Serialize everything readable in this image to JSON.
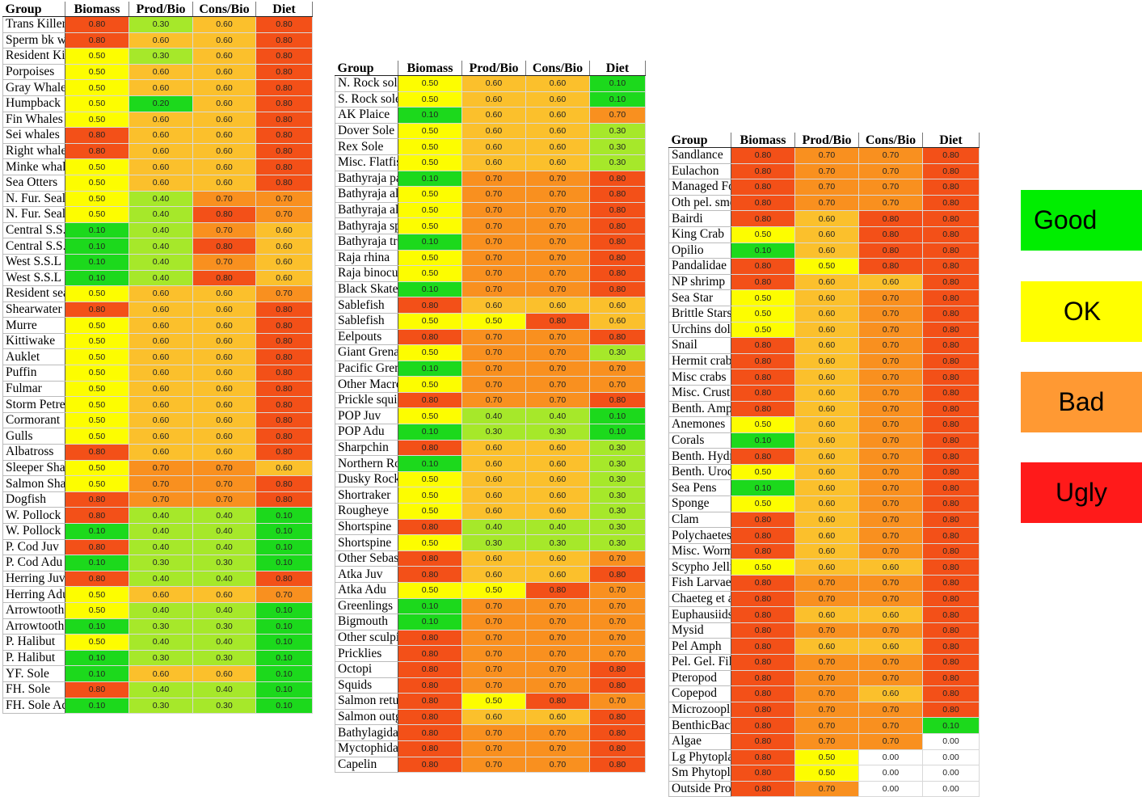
{
  "headers": [
    "Group",
    "Biomass",
    "Prod/Bio",
    "Cons/Bio",
    "Diet"
  ],
  "tables": [
    {
      "rows": [
        [
          "Trans Killer",
          "0.80",
          "0.30",
          "0.60",
          "0.80"
        ],
        [
          "Sperm bk whales",
          "0.80",
          "0.60",
          "0.60",
          "0.80"
        ],
        [
          "Resident Killers",
          "0.50",
          "0.30",
          "0.60",
          "0.80"
        ],
        [
          "Porpoises",
          "0.50",
          "0.60",
          "0.60",
          "0.80"
        ],
        [
          "Gray Whales",
          "0.50",
          "0.60",
          "0.60",
          "0.80"
        ],
        [
          "Humpback",
          "0.50",
          "0.20",
          "0.60",
          "0.80"
        ],
        [
          "Fin Whales",
          "0.50",
          "0.60",
          "0.60",
          "0.80"
        ],
        [
          "Sei whales",
          "0.80",
          "0.60",
          "0.60",
          "0.80"
        ],
        [
          "Right whales",
          "0.80",
          "0.60",
          "0.60",
          "0.80"
        ],
        [
          "Minke whales",
          "0.50",
          "0.60",
          "0.60",
          "0.80"
        ],
        [
          "Sea Otters",
          "0.50",
          "0.60",
          "0.60",
          "0.80"
        ],
        [
          "N. Fur. Seal",
          "0.50",
          "0.40",
          "0.70",
          "0.70"
        ],
        [
          "N. Fur. Seal",
          "0.50",
          "0.40",
          "0.80",
          "0.70"
        ],
        [
          "Central S.S.L",
          "0.10",
          "0.40",
          "0.70",
          "0.60"
        ],
        [
          "Central S.S.L",
          "0.10",
          "0.40",
          "0.80",
          "0.60"
        ],
        [
          "West S.S.L",
          "0.10",
          "0.40",
          "0.70",
          "0.60"
        ],
        [
          "West S.S.L",
          "0.10",
          "0.40",
          "0.80",
          "0.60"
        ],
        [
          "Resident seals",
          "0.50",
          "0.60",
          "0.60",
          "0.70"
        ],
        [
          "Shearwater",
          "0.80",
          "0.60",
          "0.60",
          "0.80"
        ],
        [
          "Murre",
          "0.50",
          "0.60",
          "0.60",
          "0.80"
        ],
        [
          "Kittiwake",
          "0.50",
          "0.60",
          "0.60",
          "0.80"
        ],
        [
          "Auklet",
          "0.50",
          "0.60",
          "0.60",
          "0.80"
        ],
        [
          "Puffin",
          "0.50",
          "0.60",
          "0.60",
          "0.80"
        ],
        [
          "Fulmar",
          "0.50",
          "0.60",
          "0.60",
          "0.80"
        ],
        [
          "Storm Petrel",
          "0.50",
          "0.60",
          "0.60",
          "0.80"
        ],
        [
          "Cormorant",
          "0.50",
          "0.60",
          "0.60",
          "0.80"
        ],
        [
          "Gulls",
          "0.50",
          "0.60",
          "0.60",
          "0.80"
        ],
        [
          "Albatross",
          "0.80",
          "0.60",
          "0.60",
          "0.80"
        ],
        [
          "Sleeper Shark",
          "0.50",
          "0.70",
          "0.70",
          "0.60"
        ],
        [
          "Salmon Shark",
          "0.50",
          "0.70",
          "0.70",
          "0.80"
        ],
        [
          "Dogfish",
          "0.80",
          "0.70",
          "0.70",
          "0.80"
        ],
        [
          "W. Pollock",
          "0.80",
          "0.40",
          "0.40",
          "0.10"
        ],
        [
          "W. Pollock",
          "0.10",
          "0.40",
          "0.40",
          "0.10"
        ],
        [
          "P. Cod  Juv",
          "0.80",
          "0.40",
          "0.40",
          "0.10"
        ],
        [
          "P. Cod  Adu",
          "0.10",
          "0.30",
          "0.30",
          "0.10"
        ],
        [
          "Herring  Juv",
          "0.80",
          "0.40",
          "0.40",
          "0.80"
        ],
        [
          "Herring  Adu",
          "0.50",
          "0.60",
          "0.60",
          "0.70"
        ],
        [
          "Arrowtooth",
          "0.50",
          "0.40",
          "0.40",
          "0.10"
        ],
        [
          "Arrowtooth",
          "0.10",
          "0.30",
          "0.30",
          "0.10"
        ],
        [
          "P. Halibut",
          "0.50",
          "0.40",
          "0.40",
          "0.10"
        ],
        [
          "P. Halibut",
          "0.10",
          "0.30",
          "0.30",
          "0.10"
        ],
        [
          "YF. Sole",
          "0.10",
          "0.60",
          "0.60",
          "0.10"
        ],
        [
          "FH. Sole",
          "0.80",
          "0.40",
          "0.40",
          "0.10"
        ],
        [
          "FH. Sole  Adu",
          "0.10",
          "0.30",
          "0.30",
          "0.10"
        ]
      ]
    },
    {
      "rows": [
        [
          "N. Rock sole",
          "0.50",
          "0.60",
          "0.60",
          "0.10"
        ],
        [
          "S. Rock sole",
          "0.50",
          "0.60",
          "0.60",
          "0.10"
        ],
        [
          "AK Plaice",
          "0.10",
          "0.60",
          "0.60",
          "0.70"
        ],
        [
          "Dover Sole",
          "0.50",
          "0.60",
          "0.60",
          "0.30"
        ],
        [
          "Rex Sole",
          "0.50",
          "0.60",
          "0.60",
          "0.30"
        ],
        [
          "Misc. Flatfish",
          "0.50",
          "0.60",
          "0.60",
          "0.30"
        ],
        [
          "Bathyraja parmifera",
          "0.10",
          "0.70",
          "0.70",
          "0.80"
        ],
        [
          "Bathyraja aleutica",
          "0.50",
          "0.70",
          "0.70",
          "0.80"
        ],
        [
          "Bathyraja aleutica",
          "0.50",
          "0.70",
          "0.70",
          "0.80"
        ],
        [
          "Bathyraja spp",
          "0.50",
          "0.70",
          "0.70",
          "0.80"
        ],
        [
          "Bathyraja trachura",
          "0.10",
          "0.70",
          "0.70",
          "0.80"
        ],
        [
          "Raja rhina",
          "0.50",
          "0.70",
          "0.70",
          "0.80"
        ],
        [
          "Raja binoculata",
          "0.50",
          "0.70",
          "0.70",
          "0.80"
        ],
        [
          "Black Skate",
          "0.10",
          "0.70",
          "0.70",
          "0.80"
        ],
        [
          "Sablefish",
          "0.80",
          "0.60",
          "0.60",
          "0.60"
        ],
        [
          "Sablefish",
          "0.50",
          "0.50",
          "0.80",
          "0.60"
        ],
        [
          "Eelpouts",
          "0.80",
          "0.70",
          "0.70",
          "0.80"
        ],
        [
          "Giant Grenadier",
          "0.50",
          "0.70",
          "0.70",
          "0.30"
        ],
        [
          "Pacific Grenadier",
          "0.10",
          "0.70",
          "0.70",
          "0.70"
        ],
        [
          "Other Macrourids",
          "0.50",
          "0.70",
          "0.70",
          "0.70"
        ],
        [
          "Prickle squish",
          "0.80",
          "0.70",
          "0.70",
          "0.80"
        ],
        [
          "POP  Juv",
          "0.50",
          "0.40",
          "0.40",
          "0.10"
        ],
        [
          "POP  Adu",
          "0.10",
          "0.30",
          "0.30",
          "0.10"
        ],
        [
          "Sharpchin",
          "0.80",
          "0.60",
          "0.60",
          "0.30"
        ],
        [
          "Northern Rockfish",
          "0.10",
          "0.60",
          "0.60",
          "0.30"
        ],
        [
          "Dusky Rockfish",
          "0.50",
          "0.60",
          "0.60",
          "0.30"
        ],
        [
          "Shortraker",
          "0.50",
          "0.60",
          "0.60",
          "0.30"
        ],
        [
          "Rougheye",
          "0.50",
          "0.60",
          "0.60",
          "0.30"
        ],
        [
          "Shortspine",
          "0.80",
          "0.40",
          "0.40",
          "0.30"
        ],
        [
          "Shortspine",
          "0.50",
          "0.30",
          "0.30",
          "0.30"
        ],
        [
          "Other Sebastes",
          "0.80",
          "0.60",
          "0.60",
          "0.70"
        ],
        [
          "Atka  Juv",
          "0.80",
          "0.60",
          "0.60",
          "0.80"
        ],
        [
          "Atka  Adu",
          "0.50",
          "0.50",
          "0.80",
          "0.70"
        ],
        [
          "Greenlings",
          "0.10",
          "0.70",
          "0.70",
          "0.70"
        ],
        [
          "Bigmouth",
          "0.10",
          "0.70",
          "0.70",
          "0.70"
        ],
        [
          "Other sculpins",
          "0.80",
          "0.70",
          "0.70",
          "0.70"
        ],
        [
          "Pricklies",
          "0.80",
          "0.70",
          "0.70",
          "0.70"
        ],
        [
          "Octopi",
          "0.80",
          "0.70",
          "0.70",
          "0.80"
        ],
        [
          "Squids",
          "0.80",
          "0.70",
          "0.70",
          "0.80"
        ],
        [
          "Salmon returning",
          "0.80",
          "0.50",
          "0.80",
          "0.70"
        ],
        [
          "Salmon outgoing",
          "0.80",
          "0.60",
          "0.60",
          "0.80"
        ],
        [
          "Bathylagidae",
          "0.80",
          "0.70",
          "0.70",
          "0.80"
        ],
        [
          "Myctophidae",
          "0.80",
          "0.70",
          "0.70",
          "0.80"
        ],
        [
          "Capelin",
          "0.80",
          "0.70",
          "0.70",
          "0.80"
        ]
      ]
    },
    {
      "rows": [
        [
          "Sandlance",
          "0.80",
          "0.70",
          "0.70",
          "0.80"
        ],
        [
          "Eulachon",
          "0.80",
          "0.70",
          "0.70",
          "0.80"
        ],
        [
          "Managed Forage",
          "0.80",
          "0.70",
          "0.70",
          "0.80"
        ],
        [
          "Oth pel. smelt",
          "0.80",
          "0.70",
          "0.70",
          "0.80"
        ],
        [
          "Bairdi",
          "0.80",
          "0.60",
          "0.80",
          "0.80"
        ],
        [
          "King Crab",
          "0.50",
          "0.60",
          "0.80",
          "0.80"
        ],
        [
          "Opilio",
          "0.10",
          "0.60",
          "0.80",
          "0.80"
        ],
        [
          "Pandalidae",
          "0.80",
          "0.50",
          "0.80",
          "0.80"
        ],
        [
          "NP shrimp",
          "0.80",
          "0.60",
          "0.60",
          "0.80"
        ],
        [
          "Sea Star",
          "0.50",
          "0.60",
          "0.70",
          "0.80"
        ],
        [
          "Brittle Stars",
          "0.50",
          "0.60",
          "0.70",
          "0.80"
        ],
        [
          "Urchins dollars",
          "0.50",
          "0.60",
          "0.70",
          "0.80"
        ],
        [
          "Snail",
          "0.80",
          "0.60",
          "0.70",
          "0.80"
        ],
        [
          "Hermit crabs",
          "0.80",
          "0.60",
          "0.70",
          "0.80"
        ],
        [
          "Misc crabs",
          "0.80",
          "0.60",
          "0.70",
          "0.80"
        ],
        [
          "Misc. Crustacea",
          "0.80",
          "0.60",
          "0.70",
          "0.80"
        ],
        [
          "Benth. Amphipods",
          "0.80",
          "0.60",
          "0.70",
          "0.80"
        ],
        [
          "Anemones",
          "0.50",
          "0.60",
          "0.70",
          "0.80"
        ],
        [
          "Corals",
          "0.10",
          "0.60",
          "0.70",
          "0.80"
        ],
        [
          "Benth. Hydroids",
          "0.80",
          "0.60",
          "0.70",
          "0.80"
        ],
        [
          "Benth. Urochordata",
          "0.50",
          "0.60",
          "0.70",
          "0.80"
        ],
        [
          "Sea Pens",
          "0.10",
          "0.60",
          "0.70",
          "0.80"
        ],
        [
          "Sponge",
          "0.50",
          "0.60",
          "0.70",
          "0.80"
        ],
        [
          "Clam",
          "0.80",
          "0.60",
          "0.70",
          "0.80"
        ],
        [
          "Polychaetes",
          "0.80",
          "0.60",
          "0.70",
          "0.80"
        ],
        [
          "Misc. Worms",
          "0.80",
          "0.60",
          "0.70",
          "0.80"
        ],
        [
          "Scypho Jellies",
          "0.50",
          "0.60",
          "0.60",
          "0.80"
        ],
        [
          "Fish Larvae",
          "0.80",
          "0.70",
          "0.70",
          "0.80"
        ],
        [
          "Chaeteg et al",
          "0.80",
          "0.70",
          "0.70",
          "0.80"
        ],
        [
          "Euphausiids",
          "0.80",
          "0.60",
          "0.60",
          "0.80"
        ],
        [
          "Mysid",
          "0.80",
          "0.70",
          "0.70",
          "0.80"
        ],
        [
          "Pel Amph",
          "0.80",
          "0.60",
          "0.60",
          "0.80"
        ],
        [
          "Pel. Gel. Filter",
          "0.80",
          "0.70",
          "0.70",
          "0.80"
        ],
        [
          "Pteropod",
          "0.80",
          "0.70",
          "0.70",
          "0.80"
        ],
        [
          "Copepod",
          "0.80",
          "0.70",
          "0.60",
          "0.80"
        ],
        [
          "Microzooplankton",
          "0.80",
          "0.70",
          "0.70",
          "0.80"
        ],
        [
          "BenthicBacteria",
          "0.80",
          "0.70",
          "0.70",
          "0.10"
        ],
        [
          "Algae",
          "0.80",
          "0.70",
          "0.70",
          "0.00"
        ],
        [
          "Lg Phytoplankton",
          "0.80",
          "0.50",
          "0.00",
          "0.00"
        ],
        [
          "Sm Phytoplankton",
          "0.80",
          "0.50",
          "0.00",
          "0.00"
        ],
        [
          "Outside Production",
          "0.80",
          "0.70",
          "0.00",
          "0.00"
        ]
      ]
    }
  ],
  "legend": [
    {
      "label": "Good",
      "color": "#00ee00"
    },
    {
      "label": "OK",
      "color": "#ffff00"
    },
    {
      "label": "Bad",
      "color": "#ff9933"
    },
    {
      "label": "Ugly",
      "color": "#ff1a1a"
    }
  ],
  "value_colors": {
    "0.10": "#1cd91c",
    "0.20": "#1cd91c",
    "0.30": "#a6e82a",
    "0.40": "#a6e82a",
    "0.50": "#fdfd00",
    "0.60": "#fbc02c",
    "0.70": "#f9901f",
    "0.80": "#f35018",
    "0.00": "#ffffff"
  }
}
